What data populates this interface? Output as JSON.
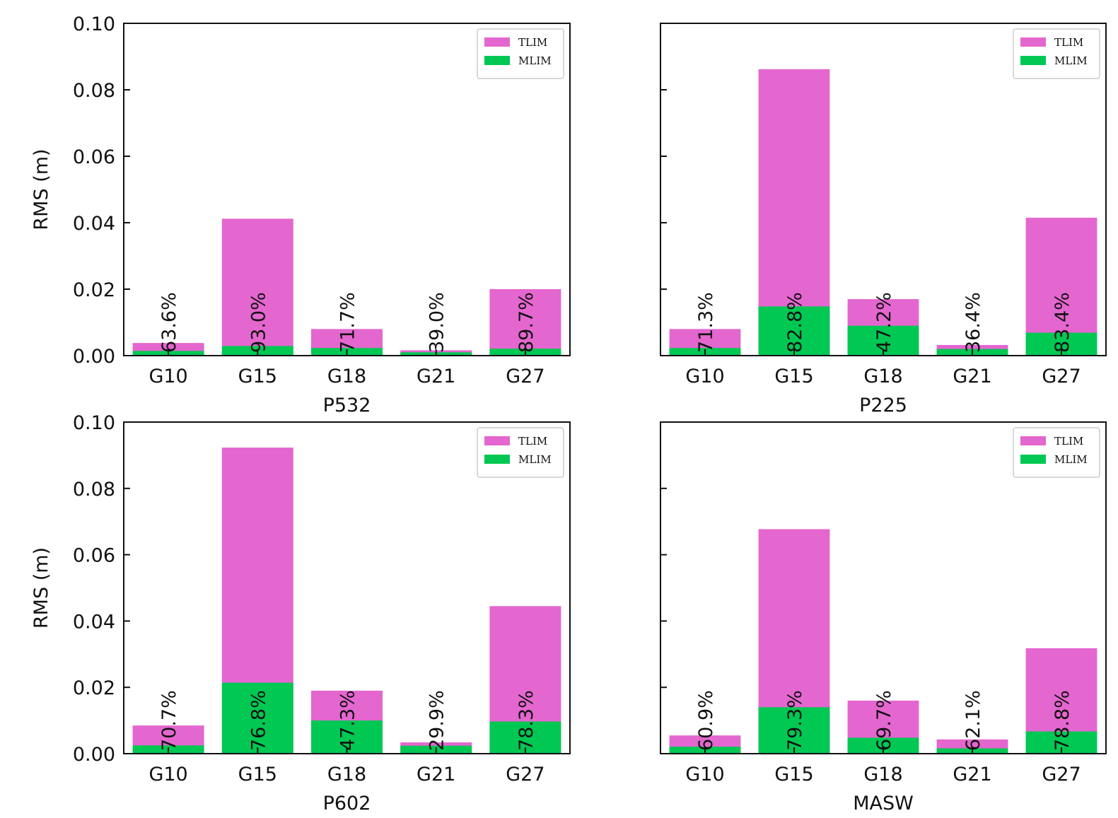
{
  "chart_data": [
    {
      "type": "bar",
      "stacking": "overlay",
      "title": "",
      "xlabel": "P532",
      "ylabel": "RMS (m)",
      "ylim": [
        0,
        0.1
      ],
      "yticks": [
        "0.00",
        "0.02",
        "0.04",
        "0.06",
        "0.08",
        "0.10"
      ],
      "show_ytick_labels": true,
      "categories": [
        "G10",
        "G15",
        "G18",
        "G21",
        "G27"
      ],
      "series": [
        {
          "name": "TLIM",
          "color": "#e466cf",
          "values": [
            0.0038,
            0.0412,
            0.008,
            0.0016,
            0.02
          ]
        },
        {
          "name": "MLIM",
          "color": "#00c853",
          "values": [
            0.0014,
            0.0029,
            0.0023,
            0.001,
            0.0021
          ]
        }
      ],
      "bar_labels": [
        "63.6%",
        "93.0%",
        "71.7%",
        "39.0%",
        "89.7%"
      ],
      "legend": "top-right"
    },
    {
      "type": "bar",
      "stacking": "overlay",
      "title": "",
      "xlabel": "P225",
      "ylabel": "",
      "ylim": [
        0,
        0.1
      ],
      "yticks": [
        "0.00",
        "0.02",
        "0.04",
        "0.06",
        "0.08",
        "0.10"
      ],
      "show_ytick_labels": false,
      "categories": [
        "G10",
        "G15",
        "G18",
        "G21",
        "G27"
      ],
      "series": [
        {
          "name": "TLIM",
          "color": "#e466cf",
          "values": [
            0.008,
            0.0862,
            0.017,
            0.0032,
            0.0415
          ]
        },
        {
          "name": "MLIM",
          "color": "#00c853",
          "values": [
            0.0023,
            0.0148,
            0.009,
            0.002,
            0.0069
          ]
        }
      ],
      "bar_labels": [
        "71.3%",
        "82.8%",
        "47.2%",
        "36.4%",
        "83.4%"
      ],
      "legend": "top-right"
    },
    {
      "type": "bar",
      "stacking": "overlay",
      "title": "",
      "xlabel": "P602",
      "ylabel": "RMS (m)",
      "ylim": [
        0,
        0.1
      ],
      "yticks": [
        "0.00",
        "0.02",
        "0.04",
        "0.06",
        "0.08",
        "0.10"
      ],
      "show_ytick_labels": true,
      "categories": [
        "G10",
        "G15",
        "G18",
        "G21",
        "G27"
      ],
      "series": [
        {
          "name": "TLIM",
          "color": "#e466cf",
          "values": [
            0.0085,
            0.0923,
            0.019,
            0.0034,
            0.0445
          ]
        },
        {
          "name": "MLIM",
          "color": "#00c853",
          "values": [
            0.0025,
            0.0214,
            0.01,
            0.0024,
            0.0097
          ]
        }
      ],
      "bar_labels": [
        "70.7%",
        "76.8%",
        "47.3%",
        "29.9%",
        "78.3%"
      ],
      "legend": "top-right"
    },
    {
      "type": "bar",
      "stacking": "overlay",
      "title": "",
      "xlabel": "MASW",
      "ylabel": "",
      "ylim": [
        0,
        0.1
      ],
      "yticks": [
        "0.00",
        "0.02",
        "0.04",
        "0.06",
        "0.08",
        "0.10"
      ],
      "show_ytick_labels": false,
      "categories": [
        "G10",
        "G15",
        "G18",
        "G21",
        "G27"
      ],
      "series": [
        {
          "name": "TLIM",
          "color": "#e466cf",
          "values": [
            0.0055,
            0.0677,
            0.016,
            0.0043,
            0.0318
          ]
        },
        {
          "name": "MLIM",
          "color": "#00c853",
          "values": [
            0.0021,
            0.014,
            0.0048,
            0.0016,
            0.0067
          ]
        }
      ],
      "bar_labels": [
        "60.9%",
        "79.3%",
        "69.7%",
        "62.1%",
        "78.8%"
      ],
      "legend": "top-right"
    }
  ]
}
